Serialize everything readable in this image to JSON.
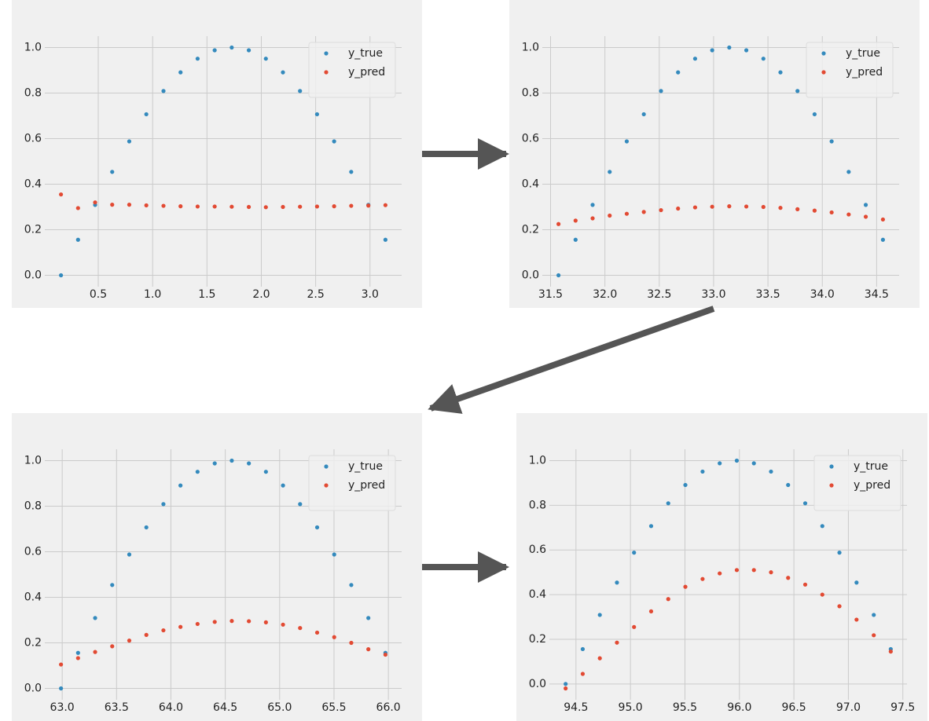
{
  "chart_data": [
    {
      "type": "scatter",
      "legend": "upper right",
      "grid": true,
      "x": [
        0.157,
        0.314,
        0.471,
        0.628,
        0.785,
        0.942,
        1.1,
        1.257,
        1.414,
        1.571,
        1.728,
        1.885,
        2.042,
        2.199,
        2.356,
        2.513,
        2.67,
        2.827,
        2.985,
        3.142
      ],
      "series": [
        {
          "name": "y_true",
          "color": "#348abd",
          "values": [
            0,
            0.156,
            0.309,
            0.454,
            0.588,
            0.707,
            0.809,
            0.891,
            0.951,
            0.988,
            1,
            0.988,
            0.951,
            0.891,
            0.809,
            0.707,
            0.588,
            0.454,
            0.309,
            0.156
          ]
        },
        {
          "name": "y_pred",
          "color": "#e24a33",
          "values": [
            0.355,
            0.295,
            0.32,
            0.31,
            0.31,
            0.307,
            0.305,
            0.303,
            0.302,
            0.302,
            0.301,
            0.3,
            0.299,
            0.3,
            0.301,
            0.302,
            0.303,
            0.305,
            0.306,
            0.308
          ]
        }
      ],
      "xlim": [
        0.008,
        3.291
      ],
      "ylim": [
        -0.05,
        1.05
      ],
      "xticks": [
        0.5,
        {
          "value": 1,
          "label": "1.0"
        },
        1.5,
        {
          "value": 2,
          "label": "2.0"
        },
        2.5,
        {
          "value": 3,
          "label": "3.0"
        }
      ],
      "yticks": [
        {
          "value": 0,
          "label": "0.0"
        },
        0.2,
        0.4,
        0.6,
        0.8,
        {
          "value": 1,
          "label": "1.0"
        }
      ]
    },
    {
      "type": "scatter",
      "legend": "upper right",
      "grid": true,
      "x": [
        31.573,
        31.73,
        31.887,
        32.044,
        32.201,
        32.358,
        32.516,
        32.673,
        32.83,
        32.987,
        33.144,
        33.301,
        33.458,
        33.615,
        33.772,
        33.929,
        34.086,
        34.243,
        34.4,
        34.558
      ],
      "series": [
        {
          "name": "y_true",
          "color": "#348abd",
          "values": [
            0,
            0.156,
            0.309,
            0.454,
            0.588,
            0.707,
            0.809,
            0.891,
            0.951,
            0.988,
            1,
            0.988,
            0.951,
            0.891,
            0.809,
            0.707,
            0.588,
            0.454,
            0.309,
            0.156
          ]
        },
        {
          "name": "y_pred",
          "color": "#e24a33",
          "values": [
            0.225,
            0.24,
            0.25,
            0.262,
            0.27,
            0.278,
            0.286,
            0.293,
            0.298,
            0.301,
            0.303,
            0.302,
            0.3,
            0.296,
            0.29,
            0.284,
            0.276,
            0.267,
            0.257,
            0.245
          ]
        }
      ],
      "xlim": [
        31.424,
        34.707
      ],
      "ylim": [
        -0.05,
        1.05
      ],
      "xticks": [
        31.5,
        {
          "value": 32,
          "label": "32.0"
        },
        32.5,
        {
          "value": 33,
          "label": "33.0"
        },
        33.5,
        {
          "value": 34,
          "label": "34.0"
        },
        34.5
      ],
      "yticks": [
        {
          "value": 0,
          "label": "0.0"
        },
        0.2,
        0.4,
        0.6,
        0.8,
        {
          "value": 1,
          "label": "1.0"
        }
      ]
    },
    {
      "type": "scatter",
      "legend": "upper right",
      "grid": true,
      "x": [
        62.989,
        63.146,
        63.303,
        63.46,
        63.617,
        63.774,
        63.931,
        64.088,
        64.245,
        64.403,
        64.56,
        64.717,
        64.874,
        65.031,
        65.188,
        65.345,
        65.502,
        65.659,
        65.816,
        65.973
      ],
      "series": [
        {
          "name": "y_true",
          "color": "#348abd",
          "values": [
            0,
            0.156,
            0.309,
            0.454,
            0.588,
            0.707,
            0.809,
            0.891,
            0.951,
            0.988,
            1,
            0.988,
            0.951,
            0.891,
            0.809,
            0.707,
            0.588,
            0.454,
            0.309,
            0.156
          ]
        },
        {
          "name": "y_pred",
          "color": "#e24a33",
          "values": [
            0.105,
            0.133,
            0.16,
            0.185,
            0.21,
            0.235,
            0.255,
            0.27,
            0.283,
            0.292,
            0.296,
            0.295,
            0.29,
            0.28,
            0.265,
            0.245,
            0.225,
            0.2,
            0.172,
            0.148
          ]
        }
      ],
      "xlim": [
        62.84,
        66.122
      ],
      "ylim": [
        -0.05,
        1.05
      ],
      "xticks": [
        {
          "value": 63,
          "label": "63.0"
        },
        63.5,
        {
          "value": 64,
          "label": "64.0"
        },
        64.5,
        {
          "value": 65,
          "label": "65.0"
        },
        65.5,
        {
          "value": 66,
          "label": "66.0"
        }
      ],
      "yticks": [
        {
          "value": 0,
          "label": "0.0"
        },
        0.2,
        0.4,
        0.6,
        0.8,
        {
          "value": 1,
          "label": "1.0"
        }
      ]
    },
    {
      "type": "scatter",
      "legend": "upper right",
      "grid": true,
      "x": [
        94.405,
        94.562,
        94.719,
        94.876,
        95.033,
        95.19,
        95.347,
        95.504,
        95.662,
        95.819,
        95.976,
        96.133,
        96.29,
        96.447,
        96.604,
        96.761,
        96.918,
        97.075,
        97.233,
        97.389
      ],
      "series": [
        {
          "name": "y_true",
          "color": "#348abd",
          "values": [
            0,
            0.156,
            0.309,
            0.454,
            0.588,
            0.707,
            0.809,
            0.891,
            0.951,
            0.988,
            1,
            0.988,
            0.951,
            0.891,
            0.809,
            0.707,
            0.588,
            0.454,
            0.309,
            0.156
          ]
        },
        {
          "name": "y_pred",
          "color": "#e24a33",
          "values": [
            -0.02,
            0.045,
            0.115,
            0.185,
            0.255,
            0.325,
            0.38,
            0.435,
            0.47,
            0.495,
            0.51,
            0.51,
            0.5,
            0.475,
            0.445,
            0.4,
            0.348,
            0.288,
            0.218,
            0.145
          ]
        }
      ],
      "xlim": [
        94.256,
        97.538
      ],
      "ylim": [
        -0.071,
        1.051
      ],
      "xticks": [
        94.5,
        {
          "value": 95,
          "label": "95.0"
        },
        95.5,
        {
          "value": 96,
          "label": "96.0"
        },
        96.5,
        {
          "value": 97,
          "label": "97.0"
        },
        97.5
      ],
      "yticks": [
        {
          "value": 0,
          "label": "0.0"
        },
        0.2,
        0.4,
        0.6,
        0.8,
        {
          "value": 1,
          "label": "1.0"
        }
      ]
    }
  ]
}
